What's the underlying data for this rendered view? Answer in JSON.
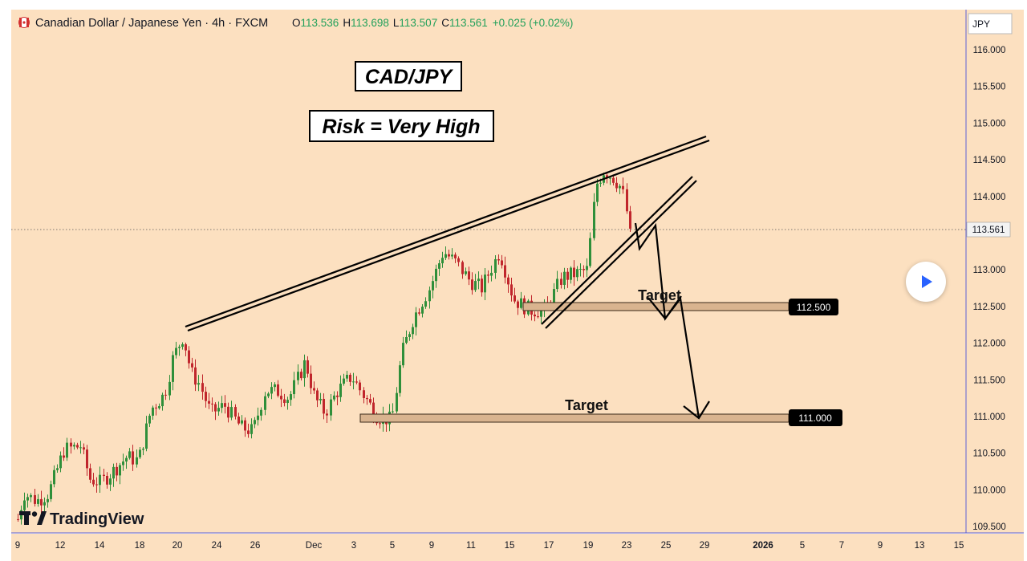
{
  "header": {
    "symbol_title": "Canadian Dollar / Japanese Yen · 4h · FXCM",
    "ohlc": [
      {
        "label": "O",
        "value": "113.536"
      },
      {
        "label": "H",
        "value": "113.698"
      },
      {
        "label": "L",
        "value": "113.507"
      },
      {
        "label": "C",
        "value": "113.561"
      }
    ],
    "change": "+0.025 (+0.02%)",
    "flag_icon": "canada-flag-icon"
  },
  "currency_label": "JPY",
  "price_tag": "113.561",
  "logo_text": "TradingView",
  "colors": {
    "background": "#fce0c0",
    "up": "#2f8f3a",
    "down": "#c0262c",
    "zone_fill": "#d9b48f",
    "change_green": "#22a05a",
    "axis_line": "#5b5fd6"
  },
  "chart_data": {
    "type": "candlestick",
    "last_price": 113.561,
    "ylim": [
      109.5,
      116.0
    ],
    "y_ticks": [
      "109.500",
      "110.000",
      "110.500",
      "111.000",
      "111.500",
      "112.000",
      "112.500",
      "113.000",
      "113.500",
      "114.000",
      "114.500",
      "115.000",
      "115.500",
      "116.000"
    ],
    "x_ticks": [
      "9",
      "12",
      "14",
      "18",
      "20",
      "24",
      "26",
      "Dec",
      "3",
      "5",
      "9",
      "11",
      "15",
      "17",
      "19",
      "23",
      "25",
      "29",
      "2026",
      "5",
      "7",
      "9",
      "13",
      "15"
    ],
    "annotations": [
      {
        "text": "CAD/JPY"
      },
      {
        "text": "Risk = Very High"
      },
      {
        "text": "Target",
        "price": 112.5
      },
      {
        "text": "Target",
        "price": 111.0
      }
    ],
    "target_zones": [
      {
        "label": "112.500",
        "price": 112.5
      },
      {
        "label": "111.000",
        "price": 111.0
      }
    ]
  }
}
